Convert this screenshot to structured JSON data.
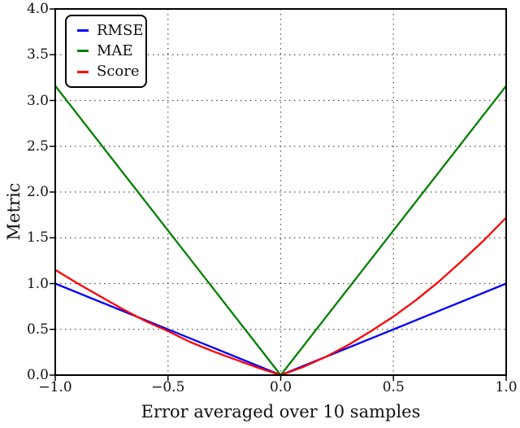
{
  "chart_data": {
    "type": "line",
    "title": "",
    "xlabel": "Error averaged over 10 samples",
    "ylabel": "Metric",
    "xlim": [
      -1.0,
      1.0
    ],
    "ylim": [
      0.0,
      4.0
    ],
    "xticks": [
      -1.0,
      -0.5,
      0.0,
      0.5,
      1.0
    ],
    "xtick_labels": [
      "−1.0",
      "−0.5",
      "0.0",
      "0.5",
      "1.0"
    ],
    "yticks": [
      0.0,
      0.5,
      1.0,
      1.5,
      2.0,
      2.5,
      3.0,
      3.5,
      4.0
    ],
    "ytick_labels": [
      "0.0",
      "0.5",
      "1.0",
      "1.5",
      "2.0",
      "2.5",
      "3.0",
      "3.5",
      "4.0"
    ],
    "grid": true,
    "grid_style": "dotted",
    "legend_position": "upper left",
    "series": [
      {
        "name": "RMSE",
        "color": "#0000ff",
        "points": [
          [
            -1.0,
            1.0
          ],
          [
            0.0,
            0.0
          ],
          [
            1.0,
            1.0
          ]
        ]
      },
      {
        "name": "MAE",
        "color": "#008000",
        "points": [
          [
            -1.0,
            3.16
          ],
          [
            0.0,
            0.0
          ],
          [
            1.0,
            3.16
          ]
        ]
      },
      {
        "name": "Score",
        "color": "#ff0000",
        "points": [
          [
            -1.0,
            1.15
          ],
          [
            -0.9,
            1.0
          ],
          [
            -0.8,
            0.86
          ],
          [
            -0.7,
            0.72
          ],
          [
            -0.6,
            0.59
          ],
          [
            -0.5,
            0.48
          ],
          [
            -0.4,
            0.36
          ],
          [
            -0.3,
            0.26
          ],
          [
            -0.2,
            0.17
          ],
          [
            -0.1,
            0.08
          ],
          [
            0.0,
            0.0
          ],
          [
            0.1,
            0.09
          ],
          [
            0.2,
            0.2
          ],
          [
            0.3,
            0.33
          ],
          [
            0.4,
            0.48
          ],
          [
            0.5,
            0.64
          ],
          [
            0.6,
            0.82
          ],
          [
            0.7,
            1.02
          ],
          [
            0.8,
            1.24
          ],
          [
            0.9,
            1.47
          ],
          [
            1.0,
            1.72
          ]
        ]
      }
    ]
  }
}
